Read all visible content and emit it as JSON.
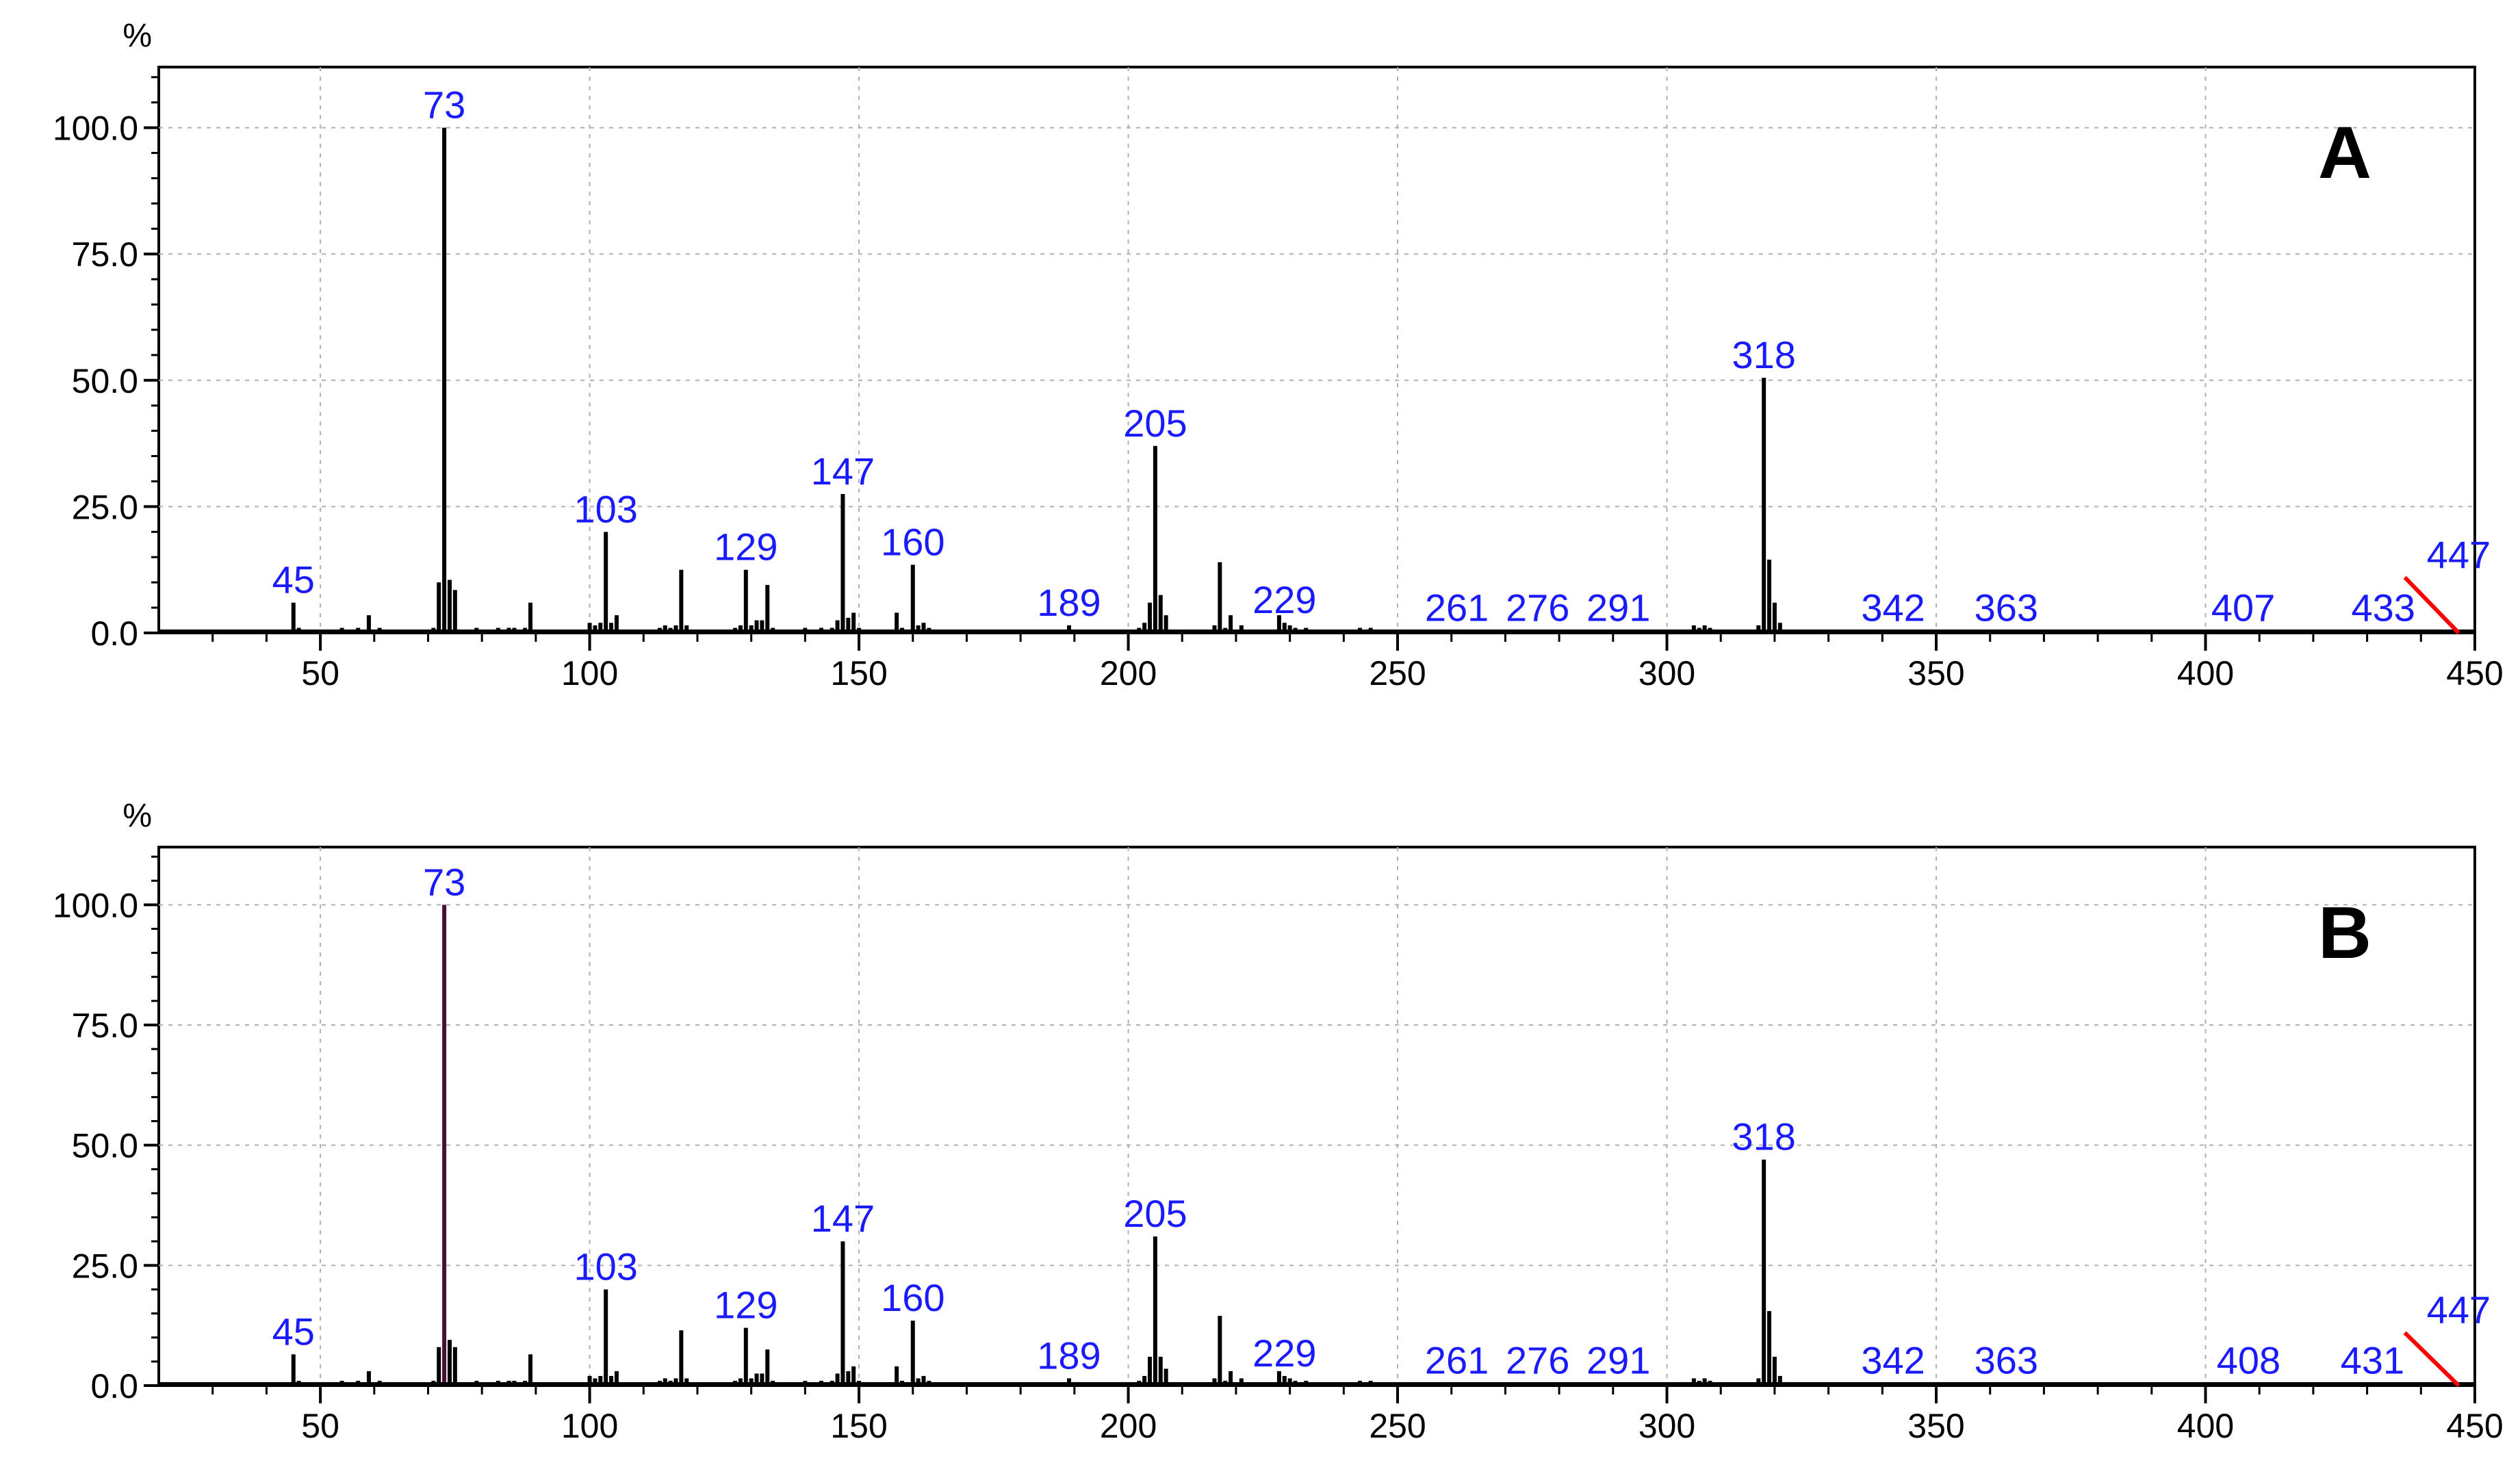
{
  "colors": {
    "axis": "#000000",
    "grid": "#b0b0b0",
    "peak": "#000000",
    "peak_label": "#1a1aff",
    "molecular_ion_marker": "#ff0000",
    "base_peak_highlight_B": "#4a1030"
  },
  "chart_data": [
    {
      "type": "bar",
      "panel_letter": "A",
      "ylabel": "%",
      "xlabel": "",
      "xlim": [
        20,
        450
      ],
      "ylim": [
        0,
        112
      ],
      "x_ticks": [
        "50",
        "100",
        "150",
        "200",
        "250",
        "300",
        "350",
        "400",
        "450"
      ],
      "y_ticks": [
        "0.0",
        "25.0",
        "50.0",
        "75.0",
        "100.0"
      ],
      "grid": true,
      "x": [
        45,
        46,
        48,
        50,
        52,
        54,
        55,
        57,
        58,
        59,
        61,
        71,
        72,
        73,
        74,
        75,
        77,
        79,
        83,
        85,
        86,
        88,
        89,
        100,
        101,
        102,
        103,
        104,
        105,
        107,
        113,
        114,
        115,
        116,
        117,
        118,
        119,
        127,
        128,
        129,
        130,
        131,
        132,
        133,
        134,
        140,
        143,
        145,
        146,
        147,
        148,
        149,
        150,
        157,
        158,
        160,
        161,
        162,
        163,
        189,
        190,
        191,
        202,
        203,
        204,
        205,
        206,
        207,
        209,
        216,
        217,
        218,
        219,
        221,
        228,
        229,
        230,
        231,
        233,
        243,
        245,
        261,
        276,
        291,
        305,
        306,
        307,
        308,
        317,
        318,
        319,
        320,
        321,
        342,
        363,
        407,
        433
      ],
      "y": [
        6,
        1,
        0.5,
        0.5,
        0.5,
        1,
        0.5,
        1,
        0.5,
        3.5,
        1,
        1,
        10,
        100,
        10.5,
        8.5,
        0.5,
        1,
        1,
        1,
        1,
        1,
        6,
        2,
        1.5,
        2,
        20,
        2,
        3.5,
        0.5,
        1,
        1.5,
        1,
        1.5,
        12.5,
        1.5,
        0.5,
        1,
        1.5,
        12.5,
        1.5,
        2.5,
        2.5,
        9.5,
        1,
        1,
        1,
        1,
        2.5,
        27.5,
        3,
        4,
        1,
        4,
        1,
        13.5,
        1.5,
        2,
        1,
        1.5,
        0.5,
        0.5,
        1,
        2,
        6,
        37,
        7.5,
        3.5,
        0.5,
        1.5,
        14,
        1,
        3.5,
        1.5,
        3.5,
        2,
        1.5,
        1,
        1,
        1,
        1,
        0.5,
        0.5,
        0.5,
        1.5,
        1,
        1.5,
        1,
        1.5,
        50.5,
        14.5,
        6,
        2,
        0.5,
        0.5,
        0.5,
        0.5
      ],
      "peak_labels": [
        "45",
        "73",
        "103",
        "129",
        "147",
        "160",
        "189",
        "205",
        "229",
        "261",
        "276",
        "291",
        "318",
        "342",
        "363",
        "407",
        "433",
        "447"
      ],
      "peak_label_positions": [
        [
          45,
          6
        ],
        [
          73,
          100
        ],
        [
          103,
          20
        ],
        [
          129,
          12.5
        ],
        [
          147,
          27.5
        ],
        [
          160,
          13.5
        ],
        [
          189,
          1.5
        ],
        [
          205,
          37
        ],
        [
          229,
          2
        ],
        [
          261,
          0.5
        ],
        [
          276,
          0.5
        ],
        [
          291,
          0.5
        ],
        [
          318,
          50.5
        ],
        [
          342,
          0.5
        ],
        [
          363,
          0.5
        ],
        [
          407,
          0.5
        ],
        [
          433,
          0.5
        ],
        [
          447,
          11
        ]
      ],
      "molecular_ion_marker": {
        "label": "447",
        "from": [
          437,
          11
        ],
        "to": [
          447,
          0
        ]
      }
    },
    {
      "type": "bar",
      "panel_letter": "B",
      "ylabel": "%",
      "xlabel": "",
      "xlim": [
        20,
        450
      ],
      "ylim": [
        0,
        112
      ],
      "x_ticks": [
        "50",
        "100",
        "150",
        "200",
        "250",
        "300",
        "350",
        "400",
        "450"
      ],
      "y_ticks": [
        "0.0",
        "25.0",
        "50.0",
        "75.0",
        "100.0"
      ],
      "grid": true,
      "x": [
        45,
        46,
        48,
        50,
        52,
        54,
        55,
        57,
        58,
        59,
        61,
        71,
        72,
        73,
        74,
        75,
        77,
        79,
        83,
        85,
        86,
        88,
        89,
        100,
        101,
        102,
        103,
        104,
        105,
        107,
        113,
        114,
        115,
        116,
        117,
        118,
        119,
        127,
        128,
        129,
        130,
        131,
        132,
        133,
        134,
        140,
        143,
        145,
        146,
        147,
        148,
        149,
        150,
        157,
        158,
        160,
        161,
        162,
        163,
        189,
        190,
        191,
        202,
        203,
        204,
        205,
        206,
        207,
        209,
        216,
        217,
        218,
        219,
        221,
        228,
        229,
        230,
        231,
        233,
        243,
        245,
        261,
        276,
        291,
        305,
        306,
        307,
        308,
        317,
        318,
        319,
        320,
        321,
        342,
        363,
        408,
        431
      ],
      "y": [
        6.5,
        1,
        0.5,
        0.5,
        0.5,
        1,
        0.5,
        1,
        0.5,
        3,
        1,
        1,
        8,
        100,
        9.5,
        8,
        0.5,
        1,
        1,
        1,
        1,
        1,
        6.5,
        2,
        1.5,
        2,
        20,
        2,
        3,
        0.5,
        1,
        1.5,
        1,
        1.5,
        11.5,
        1.5,
        0.5,
        1,
        1.5,
        12,
        1.5,
        2.5,
        2.5,
        7.5,
        1,
        1,
        1,
        1,
        2.5,
        30,
        3,
        4,
        1,
        4,
        1,
        13.5,
        1.5,
        2,
        1,
        1.5,
        0.5,
        0.5,
        1,
        2,
        6,
        31,
        6,
        3.5,
        0.5,
        1.5,
        14.5,
        1,
        3,
        1.5,
        3,
        2,
        1.5,
        1,
        1,
        1,
        1,
        0.5,
        0.5,
        0.5,
        1.5,
        1,
        1.5,
        1,
        1.5,
        47,
        15.5,
        6,
        2,
        0.5,
        0.5,
        0.5,
        0.5
      ],
      "peak_labels": [
        "45",
        "73",
        "103",
        "129",
        "147",
        "160",
        "189",
        "205",
        "229",
        "261",
        "276",
        "291",
        "318",
        "342",
        "363",
        "408",
        "431",
        "447"
      ],
      "peak_label_positions": [
        [
          45,
          6.5
        ],
        [
          73,
          100
        ],
        [
          103,
          20
        ],
        [
          129,
          12
        ],
        [
          147,
          30
        ],
        [
          160,
          13.5
        ],
        [
          189,
          1.5
        ],
        [
          205,
          31
        ],
        [
          229,
          2
        ],
        [
          261,
          0.5
        ],
        [
          276,
          0.5
        ],
        [
          291,
          0.5
        ],
        [
          318,
          47
        ],
        [
          342,
          0.5
        ],
        [
          363,
          0.5
        ],
        [
          408,
          0.5
        ],
        [
          431,
          0.5
        ],
        [
          447,
          11
        ]
      ],
      "base_peak_highlight": 73,
      "molecular_ion_marker": {
        "label": "447",
        "from": [
          437,
          11
        ],
        "to": [
          447,
          0
        ]
      }
    }
  ]
}
